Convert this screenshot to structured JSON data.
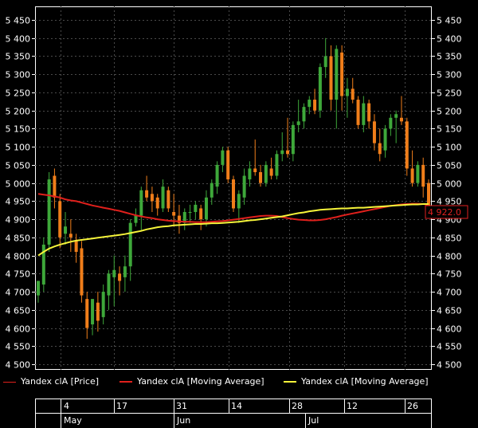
{
  "chart_data": {
    "type": "candlestick",
    "ylim": [
      4490,
      5460
    ],
    "yticks": [
      4500,
      4550,
      4600,
      4650,
      4700,
      4750,
      4800,
      4850,
      4900,
      4950,
      5000,
      5050,
      5100,
      5150,
      5200,
      5250,
      5300,
      5350,
      5400,
      5450
    ],
    "ytick_labels": [
      "4 500",
      "4 550",
      "4 600",
      "4 650",
      "4 700",
      "4 750",
      "4 800",
      "4 850",
      "4 900",
      "4 950",
      "5 000",
      "5 050",
      "5 100",
      "5 150",
      "5 200",
      "5 250",
      "5 300",
      "5 350",
      "5 400",
      "5 450"
    ],
    "grid": true,
    "last_price_label": "4 922.0",
    "candles": [
      {
        "o": 4690,
        "h": 4730,
        "l": 4670,
        "c": 4730
      },
      {
        "o": 4720,
        "h": 4850,
        "l": 4700,
        "c": 4830
      },
      {
        "o": 4830,
        "h": 5030,
        "l": 4810,
        "c": 5010
      },
      {
        "o": 5020,
        "h": 5040,
        "l": 4930,
        "c": 4960
      },
      {
        "o": 4950,
        "h": 4970,
        "l": 4820,
        "c": 4850
      },
      {
        "o": 4860,
        "h": 4920,
        "l": 4830,
        "c": 4880
      },
      {
        "o": 4860,
        "h": 4900,
        "l": 4810,
        "c": 4850
      },
      {
        "o": 4840,
        "h": 4860,
        "l": 4780,
        "c": 4810
      },
      {
        "o": 4820,
        "h": 4840,
        "l": 4670,
        "c": 4690
      },
      {
        "o": 4680,
        "h": 4700,
        "l": 4570,
        "c": 4600
      },
      {
        "o": 4610,
        "h": 4680,
        "l": 4580,
        "c": 4680
      },
      {
        "o": 4670,
        "h": 4700,
        "l": 4590,
        "c": 4620
      },
      {
        "o": 4630,
        "h": 4720,
        "l": 4610,
        "c": 4700
      },
      {
        "o": 4690,
        "h": 4760,
        "l": 4650,
        "c": 4750
      },
      {
        "o": 4740,
        "h": 4800,
        "l": 4660,
        "c": 4760
      },
      {
        "o": 4750,
        "h": 4770,
        "l": 4690,
        "c": 4730
      },
      {
        "o": 4740,
        "h": 4800,
        "l": 4700,
        "c": 4770
      },
      {
        "o": 4770,
        "h": 4900,
        "l": 4730,
        "c": 4890
      },
      {
        "o": 4890,
        "h": 4930,
        "l": 4880,
        "c": 4910
      },
      {
        "o": 4910,
        "h": 4990,
        "l": 4870,
        "c": 4980
      },
      {
        "o": 4980,
        "h": 5020,
        "l": 4950,
        "c": 4960
      },
      {
        "o": 4970,
        "h": 4990,
        "l": 4920,
        "c": 4950
      },
      {
        "o": 4960,
        "h": 4970,
        "l": 4910,
        "c": 4930
      },
      {
        "o": 4930,
        "h": 5010,
        "l": 4920,
        "c": 4990
      },
      {
        "o": 4980,
        "h": 4990,
        "l": 4920,
        "c": 4930
      },
      {
        "o": 4920,
        "h": 4970,
        "l": 4880,
        "c": 4910
      },
      {
        "o": 4910,
        "h": 4940,
        "l": 4860,
        "c": 4890
      },
      {
        "o": 4890,
        "h": 4930,
        "l": 4870,
        "c": 4920
      },
      {
        "o": 4920,
        "h": 4940,
        "l": 4890,
        "c": 4920
      },
      {
        "o": 4920,
        "h": 4950,
        "l": 4900,
        "c": 4940
      },
      {
        "o": 4930,
        "h": 4940,
        "l": 4870,
        "c": 4900
      },
      {
        "o": 4900,
        "h": 4980,
        "l": 4880,
        "c": 4960
      },
      {
        "o": 4960,
        "h": 5010,
        "l": 4940,
        "c": 5000
      },
      {
        "o": 4990,
        "h": 5060,
        "l": 4970,
        "c": 5050
      },
      {
        "o": 5050,
        "h": 5100,
        "l": 5030,
        "c": 5090
      },
      {
        "o": 5090,
        "h": 5100,
        "l": 5000,
        "c": 5010
      },
      {
        "o": 5010,
        "h": 5020,
        "l": 4920,
        "c": 4930
      },
      {
        "o": 4930,
        "h": 4980,
        "l": 4890,
        "c": 4970
      },
      {
        "o": 4960,
        "h": 5040,
        "l": 4940,
        "c": 5020
      },
      {
        "o": 5010,
        "h": 5060,
        "l": 4990,
        "c": 5040
      },
      {
        "o": 5040,
        "h": 5120,
        "l": 5020,
        "c": 5030
      },
      {
        "o": 5030,
        "h": 5050,
        "l": 4990,
        "c": 5000
      },
      {
        "o": 5000,
        "h": 5060,
        "l": 4990,
        "c": 5050
      },
      {
        "o": 5040,
        "h": 5070,
        "l": 5010,
        "c": 5020
      },
      {
        "o": 5020,
        "h": 5090,
        "l": 5010,
        "c": 5080
      },
      {
        "o": 5080,
        "h": 5140,
        "l": 5060,
        "c": 5090
      },
      {
        "o": 5090,
        "h": 5180,
        "l": 5070,
        "c": 5080
      },
      {
        "o": 5080,
        "h": 5170,
        "l": 5060,
        "c": 5160
      },
      {
        "o": 5160,
        "h": 5230,
        "l": 5140,
        "c": 5170
      },
      {
        "o": 5170,
        "h": 5220,
        "l": 5150,
        "c": 5210
      },
      {
        "o": 5210,
        "h": 5240,
        "l": 5190,
        "c": 5230
      },
      {
        "o": 5230,
        "h": 5260,
        "l": 5190,
        "c": 5200
      },
      {
        "o": 5200,
        "h": 5330,
        "l": 5180,
        "c": 5320
      },
      {
        "o": 5320,
        "h": 5400,
        "l": 5290,
        "c": 5350
      },
      {
        "o": 5350,
        "h": 5380,
        "l": 5200,
        "c": 5230
      },
      {
        "o": 5230,
        "h": 5380,
        "l": 5150,
        "c": 5370
      },
      {
        "o": 5360,
        "h": 5380,
        "l": 5200,
        "c": 5240
      },
      {
        "o": 5240,
        "h": 5290,
        "l": 5180,
        "c": 5260
      },
      {
        "o": 5260,
        "h": 5290,
        "l": 5220,
        "c": 5230
      },
      {
        "o": 5230,
        "h": 5240,
        "l": 5150,
        "c": 5160
      },
      {
        "o": 5160,
        "h": 5240,
        "l": 5140,
        "c": 5220
      },
      {
        "o": 5220,
        "h": 5230,
        "l": 5150,
        "c": 5170
      },
      {
        "o": 5170,
        "h": 5190,
        "l": 5090,
        "c": 5110
      },
      {
        "o": 5110,
        "h": 5150,
        "l": 5060,
        "c": 5080
      },
      {
        "o": 5090,
        "h": 5160,
        "l": 5070,
        "c": 5150
      },
      {
        "o": 5150,
        "h": 5190,
        "l": 5130,
        "c": 5180
      },
      {
        "o": 5180,
        "h": 5200,
        "l": 5110,
        "c": 5190
      },
      {
        "o": 5180,
        "h": 5240,
        "l": 5160,
        "c": 5170
      },
      {
        "o": 5170,
        "h": 5180,
        "l": 5020,
        "c": 5040
      },
      {
        "o": 5040,
        "h": 5090,
        "l": 4990,
        "c": 5000
      },
      {
        "o": 5000,
        "h": 5060,
        "l": 4990,
        "c": 5050
      },
      {
        "o": 5050,
        "h": 5070,
        "l": 4960,
        "c": 4990
      },
      {
        "o": 5000,
        "h": 5010,
        "l": 4910,
        "c": 4920
      }
    ],
    "ma_long": [
      4970,
      4968,
      4966,
      4963,
      4960,
      4955,
      4952,
      4950,
      4946,
      4942,
      4938,
      4935,
      4932,
      4929,
      4926,
      4923,
      4919,
      4915,
      4911,
      4908,
      4905,
      4903,
      4900,
      4898,
      4896,
      4895,
      4894,
      4893,
      4893,
      4892,
      4892,
      4892,
      4893,
      4894,
      4895,
      4897,
      4899,
      4901,
      4903,
      4905,
      4907,
      4909,
      4910,
      4910,
      4909,
      4906,
      4903,
      4901,
      4899,
      4898,
      4897,
      4897,
      4898,
      4900,
      4903,
      4906,
      4910,
      4913,
      4916,
      4919,
      4922,
      4925,
      4928,
      4931,
      4934,
      4937,
      4939,
      4941,
      4942,
      4943,
      4943,
      4942,
      4940
    ],
    "ma_short": [
      4800,
      4810,
      4819,
      4825,
      4830,
      4834,
      4838,
      4841,
      4843,
      4845,
      4847,
      4849,
      4851,
      4853,
      4855,
      4857,
      4859,
      4862,
      4865,
      4868,
      4872,
      4875,
      4878,
      4880,
      4881,
      4883,
      4884,
      4885,
      4886,
      4887,
      4887,
      4888,
      4889,
      4889,
      4890,
      4891,
      4892,
      4893,
      4895,
      4897,
      4898,
      4900,
      4902,
      4904,
      4906,
      4908,
      4911,
      4914,
      4917,
      4919,
      4922,
      4924,
      4926,
      4927,
      4928,
      4929,
      4930,
      4930,
      4931,
      4932,
      4932,
      4933,
      4934,
      4935,
      4936,
      4937,
      4938,
      4939,
      4940,
      4941,
      4941,
      4942,
      4942
    ]
  },
  "legend": {
    "item1": "Yandex clA [Price]",
    "item2": "Yandex clA [Moving Average]",
    "item3": "Yandex clA [Moving Average]"
  },
  "colors": {
    "up": "#3ea83a",
    "down": "#f07e1a",
    "ma_long": "#e0201c",
    "ma_short": "#f6f43a",
    "grid": "#4a4a4a",
    "background": "#000000",
    "price_tag_border": "#e02020"
  },
  "time_axis": {
    "dates": [
      "4",
      "17",
      "31",
      "14",
      "28",
      "12",
      "26"
    ],
    "months": [
      "May",
      "Jun",
      "Jul"
    ]
  }
}
